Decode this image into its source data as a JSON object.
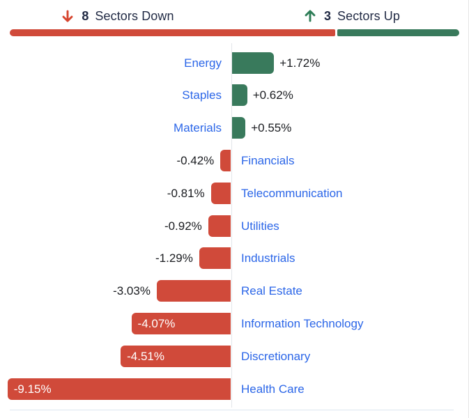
{
  "header": {
    "down": {
      "icon": "down-arrow-icon",
      "count": "8",
      "label": "Sectors Down"
    },
    "up": {
      "icon": "up-arrow-icon",
      "count": "3",
      "label": "Sectors Up"
    }
  },
  "colors": {
    "negative": "#d04a3a",
    "positive": "#397a5c",
    "sector_link": "#2b66e8",
    "heading_text": "#222b45",
    "value_text": "#1a1c20",
    "axis_line": "#e3e6e9",
    "hairline": "#dce6ef"
  },
  "chart_data": {
    "type": "bar",
    "orientation": "horizontal",
    "title": "",
    "xlabel": "",
    "ylabel": "",
    "value_suffix": "%",
    "xlim": [
      -9.5,
      2.0
    ],
    "zero_baseline": true,
    "grid": false,
    "legend": false,
    "sectors_down": 8,
    "sectors_up": 3,
    "categories": [
      "Energy",
      "Staples",
      "Materials",
      "Financials",
      "Telecommunication",
      "Utilities",
      "Industrials",
      "Real Estate",
      "Information Technology",
      "Discretionary",
      "Health Care"
    ],
    "values": [
      1.72,
      0.62,
      0.55,
      -0.42,
      -0.81,
      -0.92,
      -1.29,
      -3.03,
      -4.07,
      -4.51,
      -9.15
    ],
    "value_labels": [
      "+1.72%",
      "+0.62%",
      "+0.55%",
      "-0.42%",
      "-0.81%",
      "-0.92%",
      "-1.29%",
      "-3.03%",
      "-4.07%",
      "-4.51%",
      "-9.15%"
    ]
  }
}
